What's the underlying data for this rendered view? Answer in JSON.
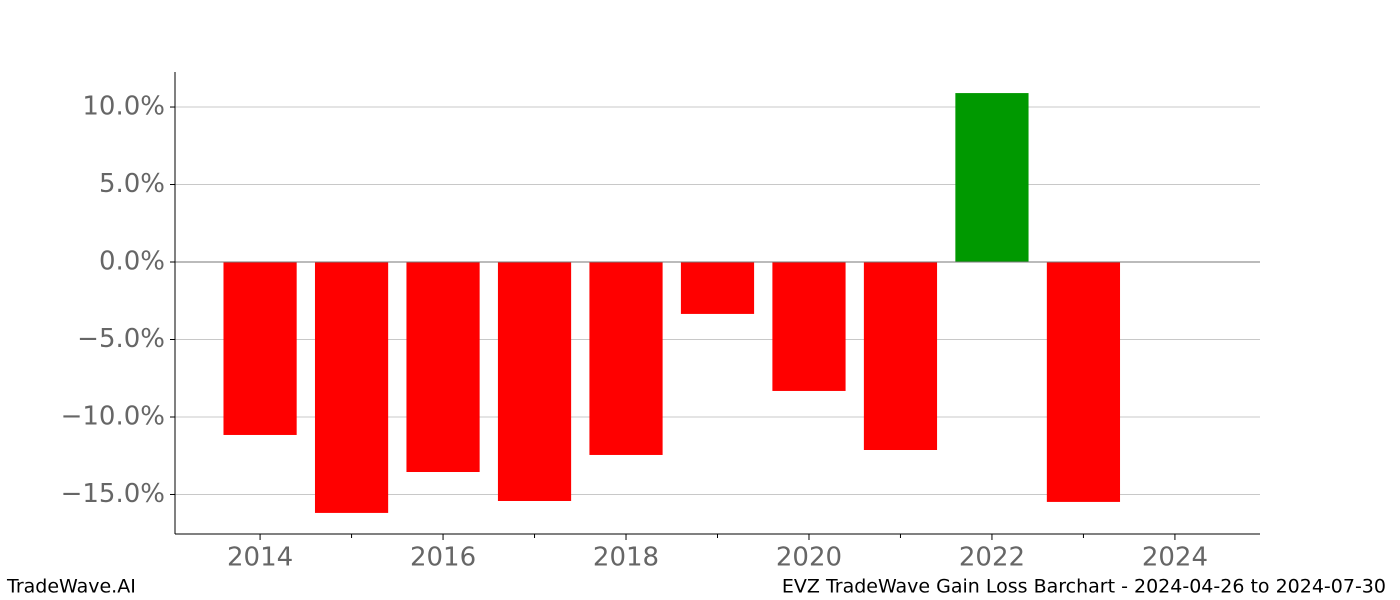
{
  "chart_data": {
    "type": "bar",
    "x": [
      2014,
      2015,
      2016,
      2017,
      2018,
      2019,
      2020,
      2021,
      2022,
      2023
    ],
    "values": [
      -11.16,
      -16.19,
      -13.55,
      -15.42,
      -12.45,
      -3.35,
      -8.32,
      -12.13,
      10.9,
      -15.48
    ],
    "colors": [
      "#ff0000",
      "#ff0000",
      "#ff0000",
      "#ff0000",
      "#ff0000",
      "#ff0000",
      "#ff0000",
      "#ff0000",
      "#009900",
      "#ff0000"
    ],
    "xlim": [
      2013.07,
      2024.93
    ],
    "xticks": [
      2014,
      2016,
      2018,
      2020,
      2022,
      2024
    ],
    "x_minor_ticks": [
      2015,
      2017,
      2019,
      2021,
      2023
    ],
    "ylim": [
      -17.55,
      12.26
    ],
    "yticks": [
      {
        "value": -15,
        "label": "−15.0%"
      },
      {
        "value": -10,
        "label": "−10.0%"
      },
      {
        "value": -5,
        "label": "−5.0%"
      },
      {
        "value": 0,
        "label": "0.0%"
      },
      {
        "value": 5,
        "label": "5.0%"
      },
      {
        "value": 10,
        "label": "10.0%"
      }
    ],
    "grid": true,
    "watermark": "TradeWave.AI",
    "caption": "EVZ TradeWave Gain Loss Barchart - 2024-04-26 to 2024-07-30"
  }
}
